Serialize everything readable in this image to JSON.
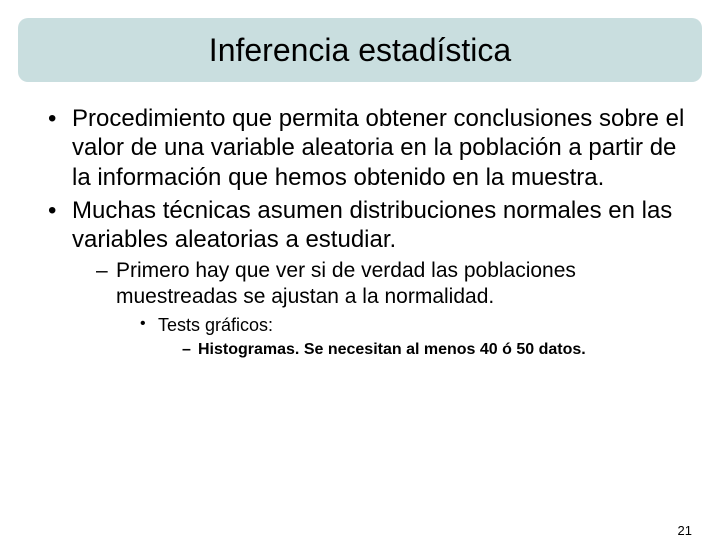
{
  "title": "Inferencia estadística",
  "colors": {
    "title_bg": "#c9dedf",
    "text": "#000000",
    "page_bg": "#ffffff"
  },
  "typography": {
    "title_fontsize": 32,
    "level1_fontsize": 24,
    "level2_fontsize": 21,
    "level3_fontsize": 18,
    "level4_fontsize": 16,
    "font_family": "Arial"
  },
  "bullets": {
    "level1": [
      "Procedimiento que permita obtener conclusiones sobre el valor de una variable aleatoria en la población a partir de la información que hemos obtenido en la muestra.",
      "Muchas técnicas asumen distribuciones normales en las variables aleatorias a estudiar."
    ],
    "level2": [
      "Primero hay que ver si de verdad las poblaciones muestreadas se ajustan a la normalidad."
    ],
    "level3": [
      "Tests gráficos:"
    ],
    "level4": [
      "Histogramas. Se necesitan al menos 40 ó 50 datos."
    ]
  },
  "page_number": "21"
}
